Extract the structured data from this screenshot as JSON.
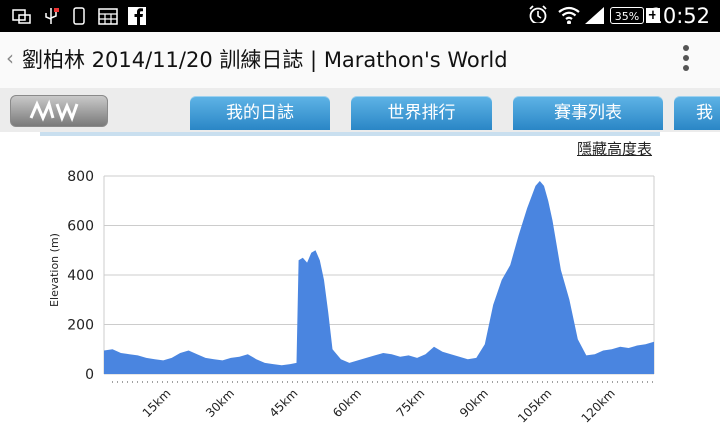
{
  "status_bar": {
    "time": "10:52",
    "battery": "35%",
    "battery_plus": "+",
    "icons": [
      "window-icon",
      "usb-icon",
      "phone-icon",
      "calendar-icon",
      "facebook-icon",
      "alarm-icon",
      "wifi-icon",
      "signal-icon"
    ]
  },
  "title_bar": {
    "back_glyph": "‹",
    "title": "劉柏林 2014/11/20 訓練日誌 | Marathon's World"
  },
  "nav": {
    "logo_text": "MW",
    "tabs": [
      "我的日誌",
      "世界排行",
      "賽事列表",
      "我"
    ]
  },
  "hide_link": "隱藏高度表",
  "colors": {
    "area_fill": "#4a85e0",
    "tab": "#2a86c6"
  },
  "chart_data": {
    "type": "area",
    "xlabel": "",
    "ylabel": "Elevation (m)",
    "ylim": [
      0,
      800
    ],
    "yticks": [
      0,
      200,
      400,
      600,
      800
    ],
    "xlim": [
      0,
      130
    ],
    "xticks": [
      15,
      30,
      45,
      60,
      75,
      90,
      105,
      120
    ],
    "xtick_labels": [
      "15km",
      "30km",
      "45km",
      "60km",
      "75km",
      "90km",
      "105km",
      "120km"
    ],
    "grid": true,
    "x": [
      0,
      2,
      4,
      6,
      8,
      10,
      12,
      14,
      16,
      18,
      20,
      22,
      24,
      26,
      28,
      30,
      32,
      34,
      36,
      38,
      40,
      42,
      44,
      45.5,
      46,
      47,
      48,
      49,
      50,
      51,
      52,
      53,
      54,
      56,
      58,
      60,
      62,
      64,
      66,
      68,
      70,
      72,
      74,
      76,
      78,
      80,
      82,
      84,
      86,
      88,
      90,
      92,
      94,
      96,
      98,
      100,
      102,
      103,
      104,
      105,
      106,
      107,
      108,
      110,
      112,
      114,
      116,
      118,
      120,
      122,
      124,
      126,
      128,
      130
    ],
    "y": [
      95,
      100,
      85,
      80,
      75,
      65,
      60,
      55,
      65,
      85,
      95,
      80,
      65,
      60,
      55,
      65,
      70,
      80,
      60,
      45,
      40,
      35,
      40,
      45,
      460,
      470,
      450,
      490,
      500,
      460,
      380,
      250,
      100,
      60,
      45,
      55,
      65,
      75,
      85,
      80,
      70,
      75,
      65,
      80,
      110,
      90,
      80,
      70,
      60,
      65,
      120,
      280,
      380,
      440,
      560,
      670,
      760,
      780,
      760,
      700,
      620,
      520,
      420,
      300,
      140,
      75,
      80,
      95,
      100,
      110,
      105,
      115,
      120,
      130
    ]
  }
}
